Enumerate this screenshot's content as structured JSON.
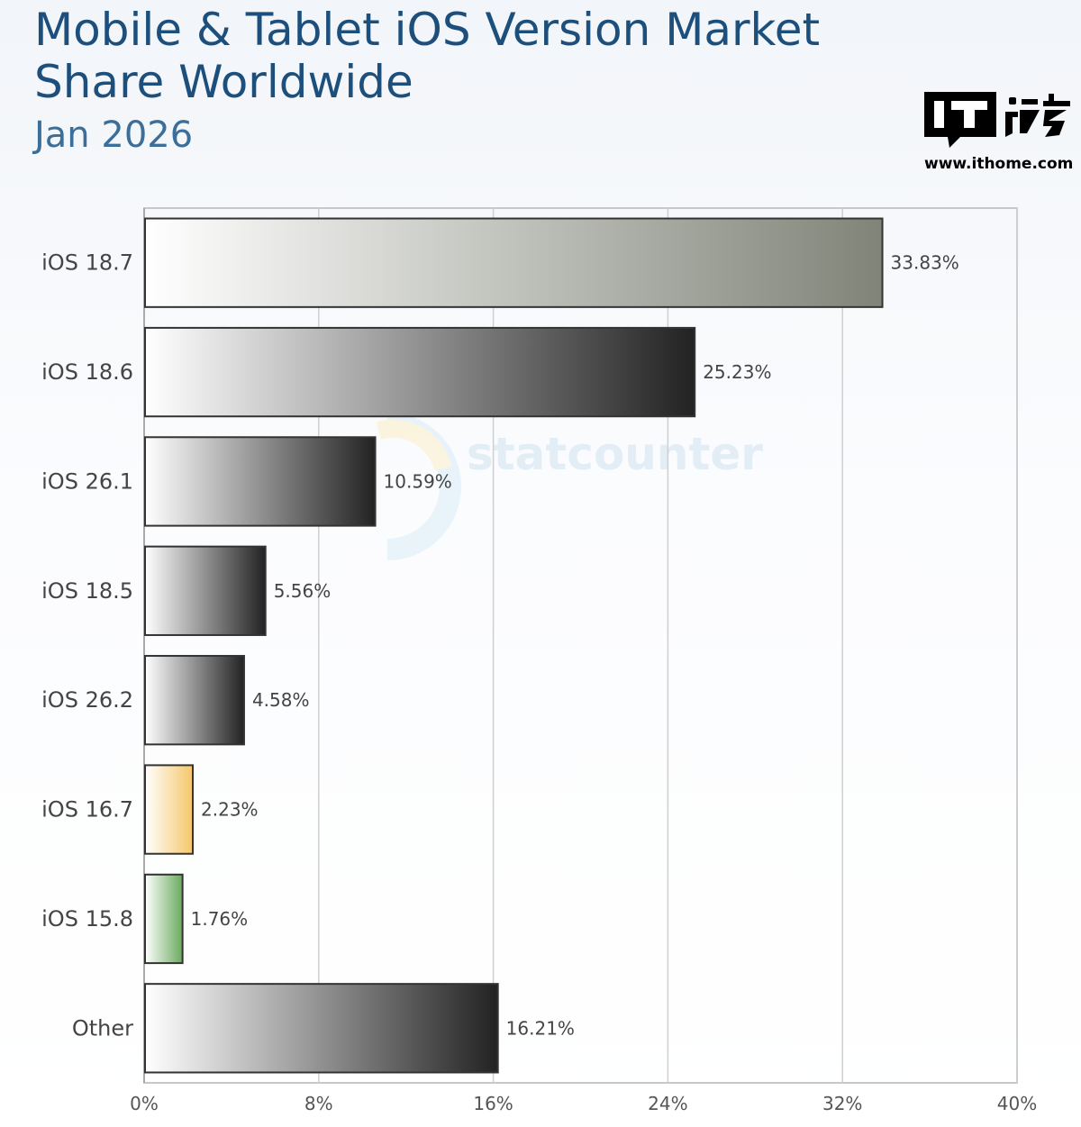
{
  "header": {
    "title": "Mobile & Tablet iOS Version Market Share Worldwide",
    "subtitle": "Jan 2026"
  },
  "logo": {
    "mark_text": "IT",
    "chinese_text": "之家",
    "url": "www.ithome.com"
  },
  "watermark": {
    "text": "statcounter"
  },
  "chart_data": {
    "type": "bar",
    "orientation": "horizontal",
    "title": "Mobile & Tablet iOS Version Market Share Worldwide",
    "subtitle": "Jan 2026",
    "categories": [
      "iOS 18.7",
      "iOS 18.6",
      "iOS 26.1",
      "iOS 18.5",
      "iOS 26.2",
      "iOS 16.7",
      "iOS 15.8",
      "Other"
    ],
    "values": [
      33.83,
      25.23,
      10.59,
      5.56,
      4.58,
      2.23,
      1.76,
      16.21
    ],
    "value_labels": [
      "33.83%",
      "25.23%",
      "10.59%",
      "5.56%",
      "4.58%",
      "2.23%",
      "1.76%",
      "16.21%"
    ],
    "bar_colors": [
      "#808478",
      "#222222",
      "#222222",
      "#222222",
      "#222222",
      "#f5c76a",
      "#6aaa5e",
      "#222222"
    ],
    "xlim": [
      0,
      40
    ],
    "xticks": [
      0,
      8,
      16,
      24,
      32,
      40
    ],
    "xtick_labels": [
      "0%",
      "8%",
      "16%",
      "24%",
      "32%",
      "40%"
    ],
    "xlabel": "",
    "ylabel": "",
    "grid": true
  }
}
